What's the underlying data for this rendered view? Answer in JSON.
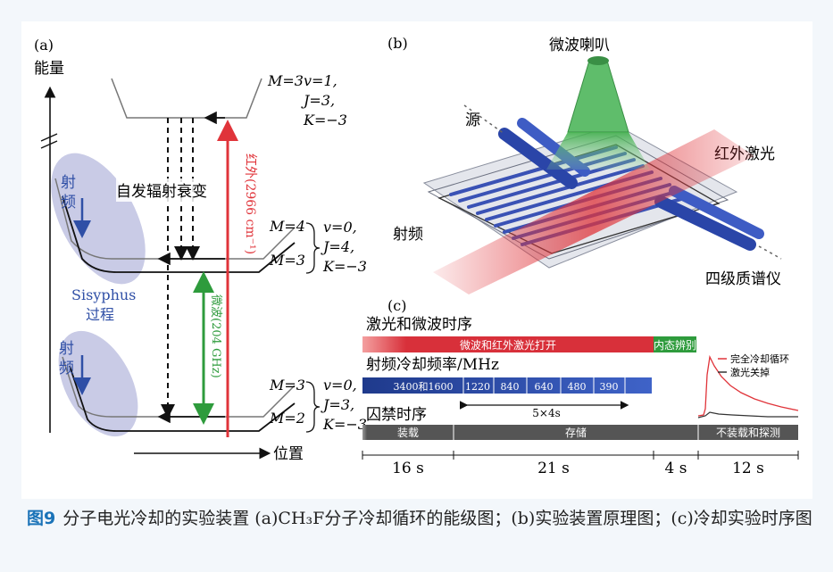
{
  "panel_a": {
    "label": "(a)",
    "y_axis": "能量",
    "x_axis": "位置",
    "upper_state": {
      "M": "M=3",
      "v": "v=1,",
      "J": "J=3,",
      "K": "K=−3"
    },
    "middle_state": {
      "M_top": "M=4",
      "M_bot": "M=3",
      "v": "v=0,",
      "J": "J=4,",
      "K": "K=−3"
    },
    "lower_state": {
      "M_top": "M=3",
      "M_bot": "M=2",
      "v": "v=0,",
      "J": "J=3,",
      "K": "K=−3"
    },
    "spontaneous": "自发辐射衰变",
    "infrared": "红外(2966 cm⁻¹)",
    "microwave": "微波(204 GHz)",
    "rf_top": [
      "射",
      "频"
    ],
    "rf_bottom": [
      "射",
      "频"
    ],
    "sisyphus": "Sisyphus",
    "process": "过程"
  },
  "panel_b": {
    "label": "(b)",
    "horn": "微波喇叭",
    "source": "源",
    "ir_laser": "红外激光",
    "rf": "射频",
    "quad": "四级质谱仪"
  },
  "panel_c": {
    "label": "(c)",
    "row1_title": "激光和微波时序",
    "row1_bar1": "微波和红外激光打开",
    "row1_bar2": "内态辨别",
    "row2_title": "射频冷却频率/MHz",
    "row2_cells": [
      "3400和1600",
      "1220",
      "840",
      "640",
      "480",
      "390"
    ],
    "row2_note": "5×4s",
    "row3_title": "囚禁时序",
    "row3_bars": [
      "装载",
      "存储",
      "不装载和探测"
    ],
    "durations": [
      "16 s",
      "21 s",
      "4 s",
      "12 s"
    ],
    "legend": [
      "完全冷却循环",
      "激光关掉"
    ]
  },
  "caption": {
    "fig": "图9",
    "text": "分子电光冷却的实验装置 (a)CH₃F分子冷却循环的能级图；(b)实验装置原理图；(c)冷却实验时序图"
  },
  "colors": {
    "red": "#e0343a",
    "green": "#2e9b3c",
    "blue": "#2f4fa6",
    "ellipse": "#c9cbe6",
    "gray": "#555555"
  }
}
